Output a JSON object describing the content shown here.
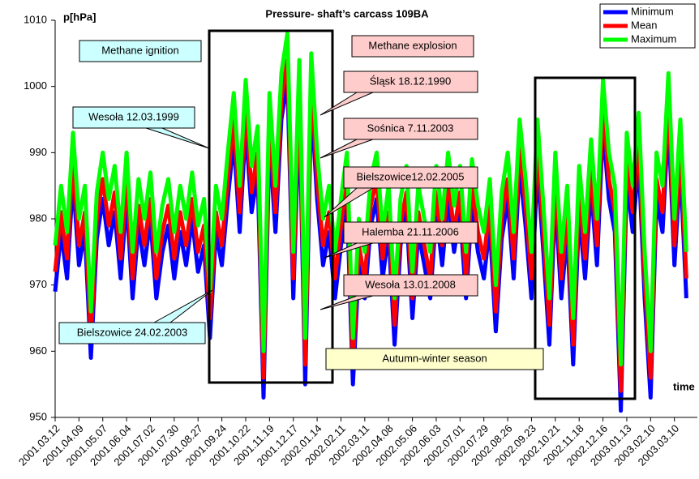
{
  "chart_data": {
    "type": "line",
    "title": "Pressure- shaft’s carcass 109BA",
    "y_label": "p[hPa]",
    "x_label": "time",
    "x": [
      "2001.03.12",
      "2001.03.19",
      "2001.03.26",
      "2001.04.02",
      "2001.04.09",
      "2001.04.16",
      "2001.04.23",
      "2001.04.30",
      "2001.05.07",
      "2001.05.14",
      "2001.05.21",
      "2001.05.28",
      "2001.06.04",
      "2001.06.11",
      "2001.06.18",
      "2001.06.25",
      "2001.07.02",
      "2001.07.09",
      "2001.07.16",
      "2001.07.23",
      "2001.07.30",
      "2001.08.06",
      "2001.08.13",
      "2001.08.20",
      "2001.08.27",
      "2001.09.03",
      "2001.09.10",
      "2001.09.17",
      "2001.09.24",
      "2001.10.01",
      "2001.10.08",
      "2001.10.15",
      "2001.10.22",
      "2001.10.29",
      "2001.11.05",
      "2001.11.12",
      "2001.11.19",
      "2001.11.26",
      "2001.12.03",
      "2001.12.10",
      "2001.12.17",
      "2001.12.24",
      "2001.12.31",
      "2002.01.07",
      "2002.01.14",
      "2002.01.21",
      "2002.01.28",
      "2002.02.04",
      "2002.02.11",
      "2002.02.18",
      "2002.02.25",
      "2002.03.04",
      "2002.03.11",
      "2002.03.18",
      "2002.03.25",
      "2002.04.01",
      "2002.04.08",
      "2002.04.15",
      "2002.04.22",
      "2002.04.29",
      "2002.05.06",
      "2002.05.13",
      "2002.05.20",
      "2002.05.27",
      "2002.06.03",
      "2002.06.10",
      "2002.06.17",
      "2002.06.24",
      "2002.07.01",
      "2002.07.08",
      "2002.07.15",
      "2002.07.22",
      "2002.07.29",
      "2002.08.05",
      "2002.08.12",
      "2002.08.19",
      "2002.08.26",
      "2002.09.02",
      "2002.09.09",
      "2002.09.16",
      "2002.09.23",
      "2002.09.30",
      "2002.10.07",
      "2002.10.14",
      "2002.10.21",
      "2002.10.28",
      "2002.11.04",
      "2002.11.11",
      "2002.11.18",
      "2002.11.25",
      "2002.12.02",
      "2002.12.09",
      "2002.12.16",
      "2002.12.23",
      "2002.12.30",
      "2003.01.06",
      "2003.01.13",
      "2003.01.20",
      "2003.01.27",
      "2003.02.03",
      "2003.02.10",
      "2003.02.17",
      "2003.02.24",
      "2003.03.03",
      "2003.03.10",
      "2003.03.17",
      "2003.03.24"
    ],
    "series": [
      {
        "name": "Minimum",
        "color": "#0000ff",
        "values": [
          969,
          978,
          971,
          986,
          973,
          978,
          959,
          977,
          983,
          976,
          981,
          971,
          983,
          968,
          979,
          973,
          980,
          968,
          975,
          979,
          971,
          978,
          973,
          980,
          972,
          976,
          962,
          978,
          973,
          983,
          992,
          978,
          994,
          981,
          987,
          953,
          992,
          978,
          995,
          1001,
          968,
          997,
          955,
          998,
          983,
          973,
          978,
          968,
          976,
          983,
          955,
          973,
          968,
          979,
          983,
          971,
          978,
          961,
          976,
          981,
          965,
          978,
          973,
          968,
          981,
          973,
          983,
          975,
          981,
          968,
          982,
          975,
          971,
          979,
          963,
          977,
          983,
          971,
          988,
          979,
          968,
          988,
          975,
          961,
          983,
          968,
          978,
          958,
          981,
          971,
          985,
          973,
          994,
          983,
          978,
          951,
          986,
          978,
          989,
          968,
          953,
          983,
          978,
          995,
          973,
          988,
          968
        ]
      },
      {
        "name": "Mean",
        "color": "#ff0000",
        "values": [
          972,
          981,
          974,
          989,
          976,
          981,
          962,
          980,
          986,
          979,
          984,
          974,
          986,
          971,
          982,
          976,
          983,
          971,
          978,
          982,
          974,
          981,
          976,
          983,
          975,
          979,
          965,
          981,
          976,
          986,
          995,
          981,
          997,
          984,
          990,
          956,
          995,
          981,
          998,
          1004,
          971,
          1000,
          958,
          1001,
          986,
          976,
          981,
          971,
          979,
          986,
          958,
          976,
          971,
          982,
          986,
          974,
          981,
          964,
          979,
          984,
          968,
          981,
          976,
          971,
          984,
          976,
          986,
          978,
          984,
          971,
          985,
          978,
          974,
          982,
          966,
          980,
          986,
          974,
          991,
          982,
          971,
          991,
          978,
          964,
          986,
          971,
          981,
          961,
          984,
          974,
          988,
          976,
          997,
          986,
          981,
          954,
          989,
          981,
          992,
          971,
          956,
          986,
          981,
          998,
          976,
          991,
          971
        ]
      },
      {
        "name": "Maximum",
        "color": "#00ff00",
        "values": [
          976,
          985,
          978,
          993,
          980,
          985,
          966,
          984,
          990,
          983,
          988,
          978,
          990,
          975,
          986,
          980,
          987,
          975,
          982,
          986,
          978,
          985,
          980,
          987,
          979,
          983,
          969,
          985,
          980,
          990,
          999,
          985,
          1001,
          988,
          994,
          960,
          999,
          985,
          1002,
          1008,
          975,
          1004,
          962,
          1005,
          990,
          980,
          985,
          975,
          983,
          990,
          962,
          980,
          975,
          986,
          990,
          978,
          985,
          968,
          983,
          988,
          972,
          985,
          980,
          975,
          988,
          980,
          990,
          982,
          988,
          975,
          989,
          982,
          978,
          986,
          970,
          984,
          990,
          978,
          995,
          986,
          975,
          995,
          982,
          968,
          990,
          975,
          985,
          965,
          988,
          978,
          992,
          980,
          1001,
          990,
          985,
          958,
          993,
          985,
          996,
          975,
          960,
          990,
          985,
          1002,
          980,
          995,
          975
        ]
      }
    ],
    "xlim": [
      "2001.03.12",
      "2003.04.06"
    ],
    "xticks": [
      "2001.03.12",
      "2001.04.09",
      "2001.05.07",
      "2001.06.04",
      "2001.07.02",
      "2001.07.30",
      "2001.08.27",
      "2001.09.24",
      "2001.10.22",
      "2001.11.19",
      "2001.12.17",
      "2002.01.14",
      "2002.02.11",
      "2002.03.11",
      "2002.04.08",
      "2002.05.06",
      "2002.06.03",
      "2002.07.01",
      "2002.07.29",
      "2002.08.26",
      "2002.09.23",
      "2002.10.21",
      "2002.11.18",
      "2002.12.16",
      "2003.01.13",
      "2003.02.10",
      "2003.03.10"
    ],
    "ylim": [
      950,
      1010
    ],
    "yticks": [
      950,
      960,
      970,
      980,
      990,
      1000,
      1010
    ],
    "annotations": [
      "Methane ignition",
      "Methane explosion",
      "Wesoła 12.03.1999",
      "Bielszowice 24.02.2003",
      "Śląsk 18.12.1990",
      "Sośnica 7.11.2003",
      "Bielszowice12.02.2005",
      "Halemba 21.11.2006",
      "Wesoła 13.01.2008",
      "Autumn-winter season"
    ],
    "legend": "top-right"
  }
}
